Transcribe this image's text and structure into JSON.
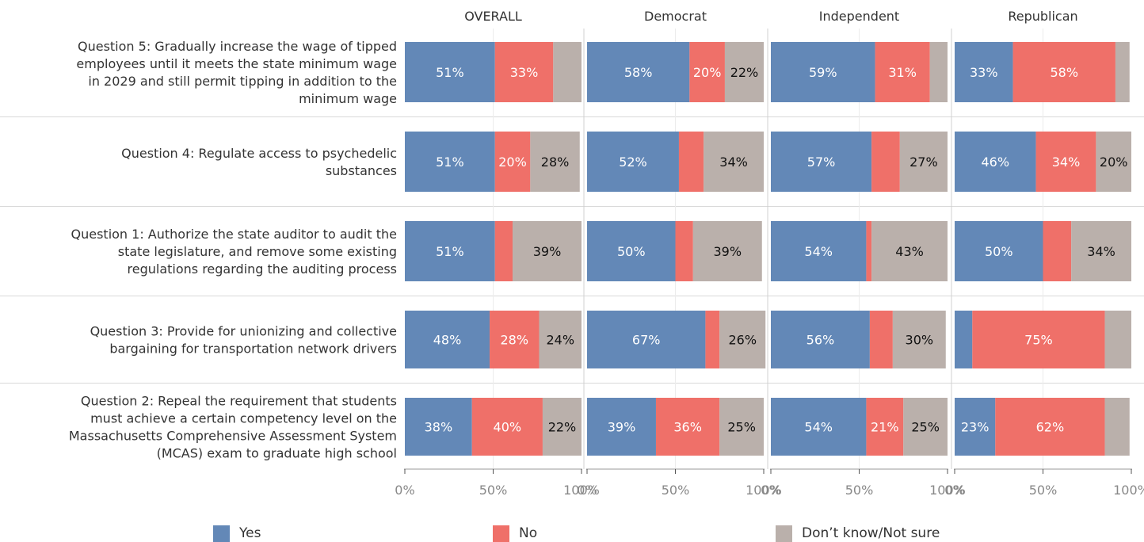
{
  "chart_data": {
    "type": "bar",
    "orientation": "horizontal",
    "stacked": true,
    "panels": [
      "OVERALL",
      "Democrat",
      "Independent",
      "Republican"
    ],
    "categories": [
      [
        "Question 5: Gradually increase the wage of tipped",
        "employees until it meets the state minimum wage",
        "in 2029 and still permit tipping in addition to the",
        "minimum wage"
      ],
      [
        "Question 4: Regulate access to psychedelic",
        "substances"
      ],
      [
        "Question 1: Authorize the state auditor to audit the",
        "state legislature, and remove some existing",
        "regulations regarding the auditing process"
      ],
      [
        "Question 3: Provide for unionizing and collective",
        "bargaining for transportation network drivers"
      ],
      [
        "Question 2: Repeal the requirement that students",
        "must achieve a certain competency level on the",
        "Massachusetts Comprehensive Assessment System",
        "(MCAS) exam to graduate high school"
      ]
    ],
    "series": [
      {
        "name": "Yes",
        "color": "#6388b7",
        "values": [
          [
            51,
            58,
            59,
            33
          ],
          [
            51,
            52,
            57,
            46
          ],
          [
            51,
            50,
            54,
            50
          ],
          [
            48,
            67,
            56,
            10
          ],
          [
            38,
            39,
            54,
            23
          ]
        ],
        "labels": [
          [
            "51%",
            "58%",
            "59%",
            "33%"
          ],
          [
            "51%",
            "52%",
            "57%",
            "46%"
          ],
          [
            "51%",
            "50%",
            "54%",
            "50%"
          ],
          [
            "48%",
            "67%",
            "56%",
            ""
          ],
          [
            "38%",
            "39%",
            "54%",
            "23%"
          ]
        ]
      },
      {
        "name": "No",
        "color": "#ef7069",
        "values": [
          [
            33,
            20,
            31,
            58
          ],
          [
            20,
            14,
            16,
            34
          ],
          [
            10,
            10,
            3,
            16
          ],
          [
            28,
            8,
            13,
            75
          ],
          [
            40,
            36,
            21,
            62
          ]
        ],
        "labels": [
          [
            "33%",
            "20%",
            "31%",
            "58%"
          ],
          [
            "20%",
            "",
            "",
            "34%"
          ],
          [
            "",
            "",
            "",
            ""
          ],
          [
            "28%",
            "",
            "",
            "75%"
          ],
          [
            "40%",
            "36%",
            "21%",
            "62%"
          ]
        ]
      },
      {
        "name": "Don’t know/Not sure",
        "color": "#bab0ab",
        "values": [
          [
            16,
            22,
            10,
            8
          ],
          [
            28,
            34,
            27,
            20
          ],
          [
            39,
            39,
            43,
            34
          ],
          [
            24,
            26,
            30,
            15
          ],
          [
            22,
            25,
            25,
            14
          ]
        ],
        "labels": [
          [
            "",
            "22%",
            "",
            ""
          ],
          [
            "28%",
            "34%",
            "27%",
            "20%"
          ],
          [
            "39%",
            "39%",
            "43%",
            "34%"
          ],
          [
            "24%",
            "26%",
            "30%",
            ""
          ],
          [
            "22%",
            "25%",
            "25%",
            ""
          ]
        ]
      }
    ],
    "xlim": [
      0,
      100
    ],
    "x_ticks": [
      "0%",
      "50%",
      "100%"
    ],
    "legend_position": "bottom",
    "grid": true
  }
}
